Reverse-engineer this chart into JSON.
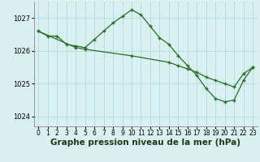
{
  "series1": {
    "x": [
      0,
      1,
      2,
      3,
      4,
      5,
      6,
      7,
      8,
      9,
      10,
      11,
      12,
      13,
      14,
      15,
      16,
      17,
      18,
      19,
      20,
      21,
      22,
      23
    ],
    "y": [
      1026.6,
      1026.45,
      1026.45,
      1026.2,
      1026.15,
      1026.1,
      1026.35,
      1026.6,
      1026.85,
      1027.05,
      1027.25,
      1027.1,
      1026.75,
      1026.4,
      1026.2,
      1025.85,
      1025.55,
      1025.25,
      1024.85,
      1024.55,
      1024.45,
      1024.5,
      1025.1,
      1025.5
    ]
  },
  "series2": {
    "x": [
      0,
      4,
      5,
      10,
      14,
      15,
      16,
      17,
      18,
      19,
      20,
      21,
      22,
      23
    ],
    "y": [
      1026.6,
      1026.1,
      1026.05,
      1025.85,
      1025.65,
      1025.55,
      1025.45,
      1025.35,
      1025.2,
      1025.1,
      1025.0,
      1024.9,
      1025.3,
      1025.5
    ]
  },
  "line_color": "#2d6a2d",
  "bg_color": "#d8f0f0",
  "grid_color": "#b8dede",
  "ylim": [
    1023.7,
    1027.5
  ],
  "yticks": [
    1024,
    1025,
    1026,
    1027
  ],
  "xticks": [
    0,
    1,
    2,
    3,
    4,
    5,
    6,
    7,
    8,
    9,
    10,
    11,
    12,
    13,
    14,
    15,
    16,
    17,
    18,
    19,
    20,
    21,
    22,
    23
  ],
  "xlabel": "Graphe pression niveau de la mer (hPa)",
  "xlabel_fontsize": 7.5,
  "tick_fontsize": 6.0
}
